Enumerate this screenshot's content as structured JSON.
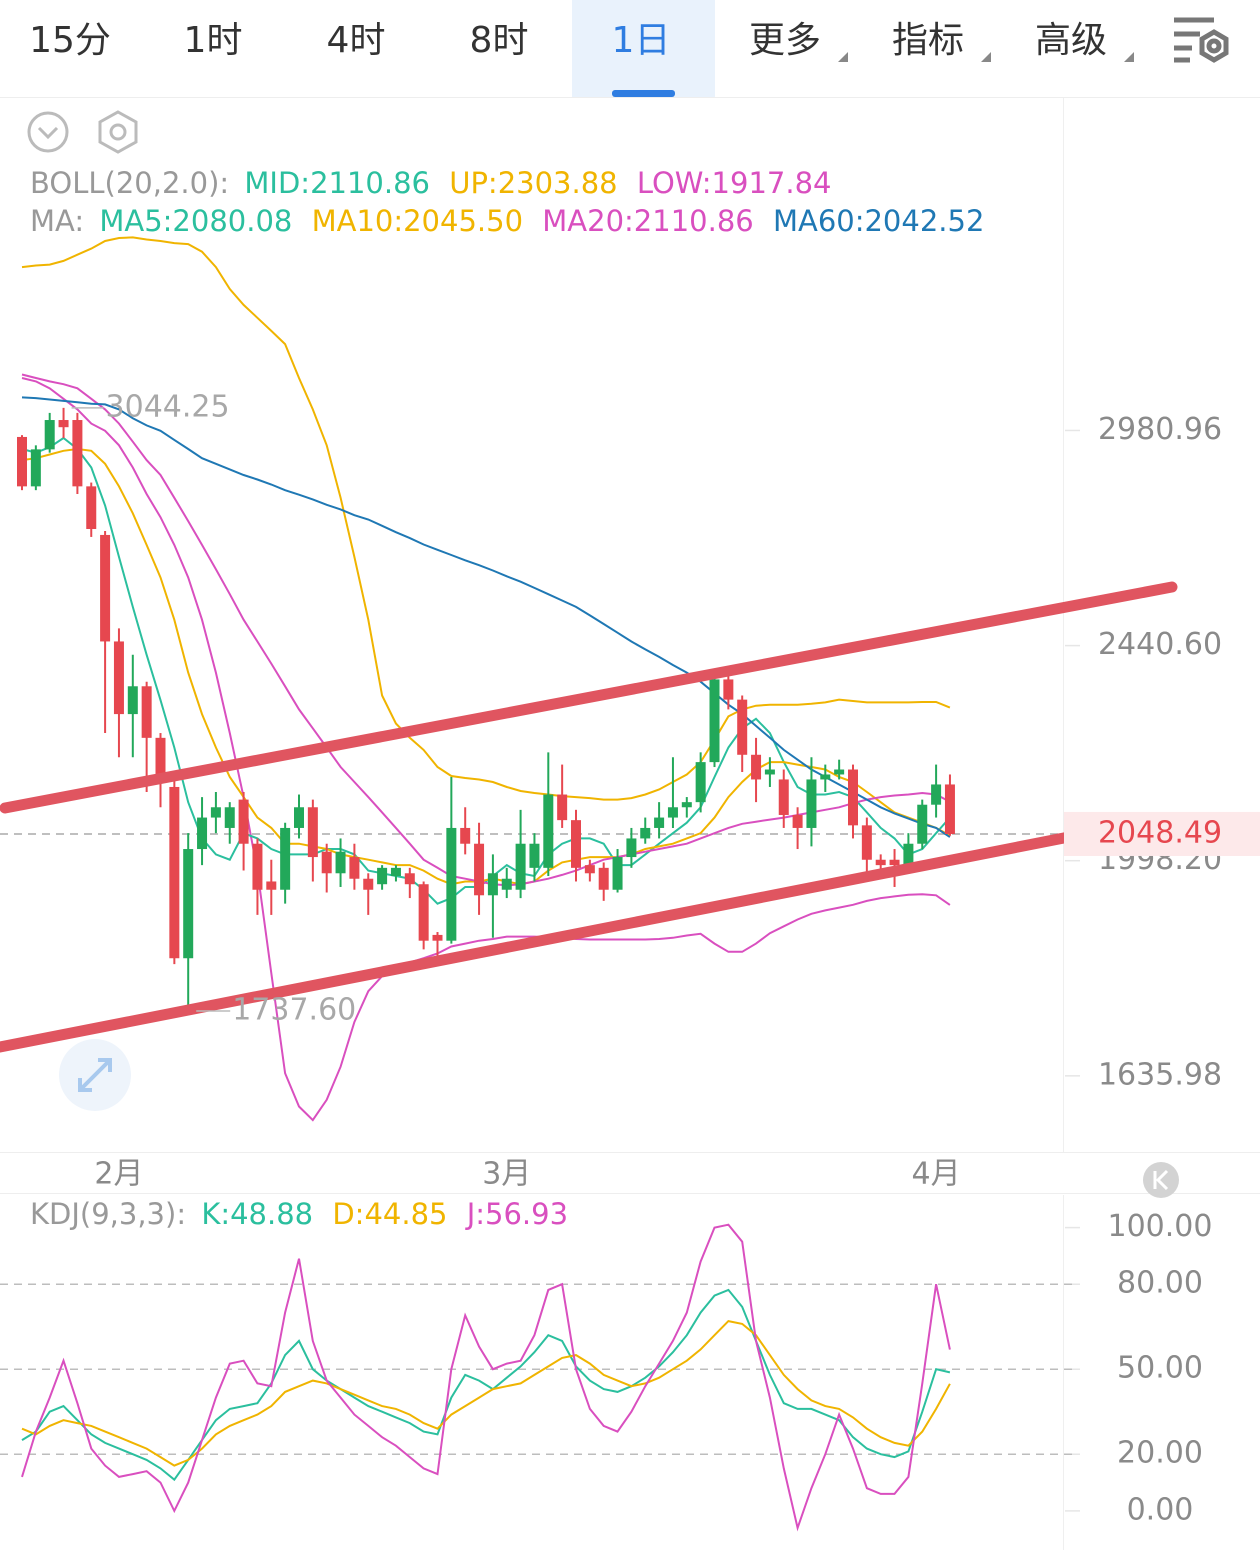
{
  "tabs": [
    "15分",
    "1时",
    "4时",
    "8时",
    "1日",
    "更多",
    "指标",
    "高级"
  ],
  "active_tab": 4,
  "chart_data": [
    {
      "type": "candlestick",
      "log_scale": true,
      "ylim": [
        1527,
        4053
      ],
      "yticks": [
        2980.96,
        {
          "value": 2440.6,
          "label": "2440.60"
        },
        {
          "value": 1998.2,
          "label": "1998.20"
        },
        1635.98
      ],
      "last_price": 2048.49,
      "max_label": 3044.25,
      "min_label": {
        "value": 1737.6,
        "label": "1737.60"
      },
      "up_color": "#22a85a",
      "down_color": "#e6474f",
      "categories": [
        null,
        null,
        null,
        null,
        null,
        null,
        null,
        "2月",
        null,
        null,
        null,
        null,
        null,
        null,
        null,
        null,
        null,
        null,
        null,
        null,
        null,
        null,
        null,
        null,
        null,
        null,
        null,
        null,
        null,
        null,
        null,
        null,
        null,
        null,
        null,
        "3月",
        null,
        null,
        null,
        null,
        null,
        null,
        null,
        null,
        null,
        null,
        null,
        null,
        null,
        null,
        null,
        null,
        null,
        null,
        null,
        null,
        null,
        null,
        null,
        null,
        null,
        null,
        null,
        null,
        null,
        null,
        "4月",
        null
      ],
      "open": [
        2963,
        2830,
        2929,
        3010,
        3010,
        2830,
        2705,
        2450,
        2290,
        2350,
        2240,
        2140,
        1825,
        2020,
        2080,
        2060,
        2115,
        2030,
        1960,
        1945,
        2060,
        2100,
        2015,
        1975,
        2005,
        1965,
        1955,
        1970,
        1975,
        1955,
        1865,
        1855,
        2060,
        2030,
        1935,
        1945,
        1945,
        1985,
        1985,
        2125,
        2075,
        1990,
        1985,
        1945,
        2005,
        2040,
        2060,
        2080,
        2100,
        2110,
        2190,
        2365,
        2321,
        2205,
        2165,
        2155,
        2085,
        2060,
        2155,
        2165,
        2175,
        2065,
        2000,
        2000,
        1990,
        2030,
        2105,
        2145
      ],
      "high": [
        2968,
        2940,
        3030,
        3044.25,
        3030,
        2840,
        2715,
        2480,
        2420,
        2360,
        2250,
        2160,
        2050,
        2120,
        2130,
        2110,
        2130,
        2040,
        2000,
        2070,
        2125,
        2115,
        2030,
        2040,
        2030,
        1975,
        1990,
        1990,
        1985,
        1960,
        1870,
        2160,
        2100,
        2070,
        2010,
        1985,
        2095,
        2050,
        2210,
        2185,
        2095,
        2000,
        1995,
        2020,
        2060,
        2080,
        2110,
        2200,
        2120,
        2210,
        2380,
        2375,
        2330,
        2240,
        2200,
        2175,
        2100,
        2200,
        2185,
        2195,
        2185,
        2080,
        2010,
        2020,
        2050,
        2115,
        2185,
        2165
      ],
      "low": [
        2820,
        2820,
        2920,
        2960,
        2810,
        2700,
        2250,
        2200,
        2200,
        2130,
        2100,
        1815,
        1737.6,
        1990,
        2050,
        2030,
        1980,
        1900,
        1900,
        1920,
        2040,
        1960,
        1940,
        1950,
        1945,
        1900,
        1945,
        1960,
        1930,
        1840,
        1820,
        1850,
        2010,
        1900,
        1860,
        1930,
        1930,
        1960,
        1970,
        2060,
        1960,
        1960,
        1925,
        1940,
        1985,
        2030,
        2040,
        2060,
        2080,
        2090,
        2180,
        2300,
        2170,
        2110,
        2140,
        2060,
        2020,
        2025,
        2130,
        2155,
        2040,
        1965,
        1980,
        1950,
        1975,
        2020,
        2080,
        2045
      ],
      "close": [
        2830,
        2929,
        3010,
        2990,
        2830,
        2720,
        2450,
        2290,
        2350,
        2240,
        2160,
        1825,
        2020,
        2080,
        2100,
        2100,
        2030,
        1945,
        1945,
        2060,
        2100,
        2005,
        1975,
        2015,
        1965,
        1945,
        1985,
        1985,
        1955,
        1855,
        1855,
        2060,
        2030,
        1935,
        1975,
        1965,
        2030,
        2030,
        2125,
        2075,
        1985,
        1975,
        1945,
        2005,
        2040,
        2060,
        2080,
        2100,
        2110,
        2190,
        2365,
        2321,
        2205,
        2155,
        2175,
        2085,
        2060,
        2155,
        2165,
        2175,
        2065,
        2000,
        1990,
        1990,
        2030,
        2105,
        2145,
        2048.49
      ],
      "boll": {
        "label": "BOLL(20,2.0):",
        "mid": {
          "name": "MID:2110.86",
          "color": "#2bbf9e"
        }
      },
      "ma_label": "MA:",
      "boll_series": [
        {
          "name": "UP:2303.88",
          "color": "#f0b400",
          "values": [
            3470,
            3475,
            3478,
            3490,
            3510,
            3530,
            3555,
            3565,
            3567,
            3560,
            3555,
            3548,
            3545,
            3520,
            3470,
            3400,
            3350,
            3310,
            3270,
            3230,
            3130,
            3040,
            2940,
            2800,
            2650,
            2500,
            2330,
            2270,
            2240,
            2215,
            2180,
            2162,
            2158,
            2155,
            2150,
            2140,
            2132,
            2128,
            2125,
            2122,
            2120,
            2118,
            2115,
            2115,
            2118,
            2125,
            2135,
            2150,
            2165,
            2190,
            2236,
            2285,
            2300,
            2308,
            2310,
            2310,
            2310,
            2312,
            2315,
            2321,
            2318,
            2315,
            2315,
            2315,
            2315,
            2316,
            2316,
            2303.88
          ]
        },
        {
          "name": "LOW:1917.84",
          "color": "#d94fbf",
          "values": [
            3130,
            3120,
            3100,
            3070,
            3040,
            3000,
            2980,
            2940,
            2880,
            2810,
            2750,
            2680,
            2600,
            2500,
            2380,
            2250,
            2120,
            1980,
            1800,
            1640,
            1590,
            1570,
            1600,
            1650,
            1720,
            1770,
            1795,
            1810,
            1818,
            1825,
            1833,
            1845,
            1850,
            1855,
            1858,
            1862,
            1862,
            1862,
            1861,
            1860,
            1858,
            1857,
            1857,
            1857,
            1857,
            1857,
            1858,
            1860,
            1864,
            1867,
            1850,
            1836,
            1836,
            1850,
            1868,
            1880,
            1892,
            1902,
            1908,
            1913,
            1918,
            1925,
            1930,
            1933,
            1936,
            1937,
            1935,
            1917.84
          ]
        }
      ],
      "ma_series": [
        {
          "name": "MA5:2080.08",
          "color": "#2bbf9e",
          "values": [
            2930,
            2920,
            2935,
            2960,
            2930,
            2880,
            2780,
            2650,
            2530,
            2420,
            2320,
            2220,
            2110,
            2040,
            2010,
            2000,
            2050,
            2040,
            2020,
            2010,
            2010,
            2010,
            2020,
            2020,
            2010,
            1980,
            1975,
            1970,
            1965,
            1945,
            1920,
            1930,
            1950,
            1950,
            1970,
            1990,
            1975,
            1970,
            2010,
            2030,
            2040,
            2040,
            2030,
            1990,
            1990,
            2010,
            2030,
            2050,
            2070,
            2100,
            2160,
            2220,
            2260,
            2280,
            2250,
            2190,
            2140,
            2125,
            2125,
            2130,
            2120,
            2090,
            2060,
            2040,
            2010,
            2020,
            2050,
            2080.08
          ]
        },
        {
          "name": "MA10:2045.50",
          "color": "#f0b400",
          "values": [
            2900,
            2905,
            2915,
            2925,
            2930,
            2925,
            2890,
            2830,
            2760,
            2680,
            2600,
            2500,
            2380,
            2290,
            2220,
            2160,
            2120,
            2080,
            2060,
            2030,
            2030,
            2025,
            2020,
            2010,
            2005,
            2000,
            1995,
            1990,
            1990,
            1980,
            1965,
            1955,
            1960,
            1960,
            1965,
            1960,
            1955,
            1960,
            1980,
            1995,
            2000,
            2005,
            2005,
            2005,
            2010,
            2020,
            2025,
            2030,
            2040,
            2050,
            2080,
            2120,
            2150,
            2175,
            2190,
            2190,
            2185,
            2180,
            2175,
            2160,
            2150,
            2130,
            2110,
            2090,
            2080,
            2070,
            2060,
            2045.5
          ]
        },
        {
          "name": "MA20:2110.86",
          "color": "#d94fbf",
          "values": [
            3140,
            3130,
            3120,
            3112,
            3100,
            3070,
            3040,
            3000,
            2950,
            2900,
            2860,
            2800,
            2740,
            2680,
            2620,
            2560,
            2500,
            2450,
            2400,
            2350,
            2300,
            2260,
            2220,
            2180,
            2150,
            2120,
            2090,
            2060,
            2030,
            2000,
            1985,
            1970,
            1965,
            1960,
            1955,
            1953,
            1955,
            1960,
            1965,
            1972,
            1980,
            1990,
            2000,
            2005,
            2010,
            2015,
            2020,
            2025,
            2030,
            2040,
            2050,
            2060,
            2068,
            2072,
            2076,
            2080,
            2085,
            2090,
            2095,
            2100,
            2108,
            2115,
            2120,
            2123,
            2125,
            2128,
            2125,
            2110.86
          ]
        },
        {
          "name": "MA60:2042.52",
          "color": "#1f78b4",
          "values": [
            3074,
            3072,
            3068,
            3064,
            3060,
            3056,
            3054,
            3040,
            3015,
            2995,
            2980,
            2955,
            2930,
            2905,
            2890,
            2875,
            2860,
            2848,
            2835,
            2820,
            2808,
            2796,
            2782,
            2770,
            2755,
            2744,
            2728,
            2712,
            2697,
            2681,
            2668,
            2655,
            2642,
            2630,
            2617,
            2603,
            2590,
            2575,
            2560,
            2545,
            2530,
            2510,
            2490,
            2470,
            2450,
            2432,
            2415,
            2397,
            2380,
            2360,
            2335,
            2310,
            2290,
            2265,
            2240,
            2215,
            2195,
            2175,
            2160,
            2145,
            2130,
            2115,
            2100,
            2088,
            2078,
            2068,
            2060,
            2042.52
          ]
        }
      ]
    },
    {
      "type": "line",
      "title": "KDJ(9,3,3):",
      "ylim": [
        -13.8,
        111.5
      ],
      "yticks": [
        {
          "value": 100,
          "label": "100.00"
        },
        {
          "value": 80,
          "label": "80.00"
        },
        {
          "value": 50,
          "label": "50.00"
        },
        {
          "value": 20,
          "label": "20.00"
        },
        {
          "value": 0,
          "label": "0.00"
        }
      ],
      "grid": true,
      "series": [
        {
          "name": "K:48.88",
          "color": "#2bbf9e",
          "values": [
            25,
            28,
            35,
            37,
            32,
            27,
            24,
            22,
            20,
            18,
            15,
            11,
            18,
            25,
            32,
            36,
            37,
            38,
            45,
            55,
            60,
            50,
            46,
            43,
            40,
            37,
            35,
            33,
            31,
            28,
            27,
            40,
            48,
            46,
            43,
            47,
            51,
            56,
            62,
            60,
            51,
            46,
            43,
            42,
            44,
            47,
            51,
            56,
            62,
            70,
            76,
            78,
            72,
            60,
            48,
            38,
            36,
            36,
            34,
            32,
            26,
            22,
            20,
            19,
            21,
            35,
            50,
            48.88
          ]
        },
        {
          "name": "D:44.85",
          "color": "#f0b400",
          "values": [
            29,
            27,
            30,
            32,
            31,
            30,
            28,
            26,
            24,
            22,
            19,
            16,
            18,
            22,
            27,
            30,
            32,
            34,
            37,
            42,
            44,
            46,
            45,
            43,
            41,
            39,
            37,
            36,
            34,
            31,
            29,
            34,
            37,
            40,
            43,
            44,
            45,
            48,
            51,
            54,
            55,
            52,
            48,
            46,
            44,
            45,
            47,
            50,
            53,
            57,
            62,
            67,
            66,
            62,
            55,
            48,
            43,
            39,
            37,
            36,
            33,
            29,
            26,
            24,
            23,
            28,
            36,
            44.85
          ]
        },
        {
          "name": "J:56.93",
          "color": "#d94fbf",
          "values": [
            12,
            28,
            40,
            53,
            38,
            22,
            16,
            12,
            13,
            14,
            10,
            0,
            10,
            25,
            40,
            52,
            53,
            45,
            44,
            70,
            89,
            60,
            46,
            40,
            34,
            30,
            26,
            23,
            19,
            15,
            13,
            50,
            69,
            58,
            50,
            52,
            53,
            62,
            78,
            80,
            50,
            36,
            30,
            28,
            35,
            44,
            52,
            60,
            70,
            88,
            100,
            101,
            95,
            60,
            40,
            15,
            -6,
            8,
            20,
            34,
            22,
            8,
            6,
            6,
            12,
            45,
            80,
            56.93
          ]
        }
      ]
    }
  ]
}
